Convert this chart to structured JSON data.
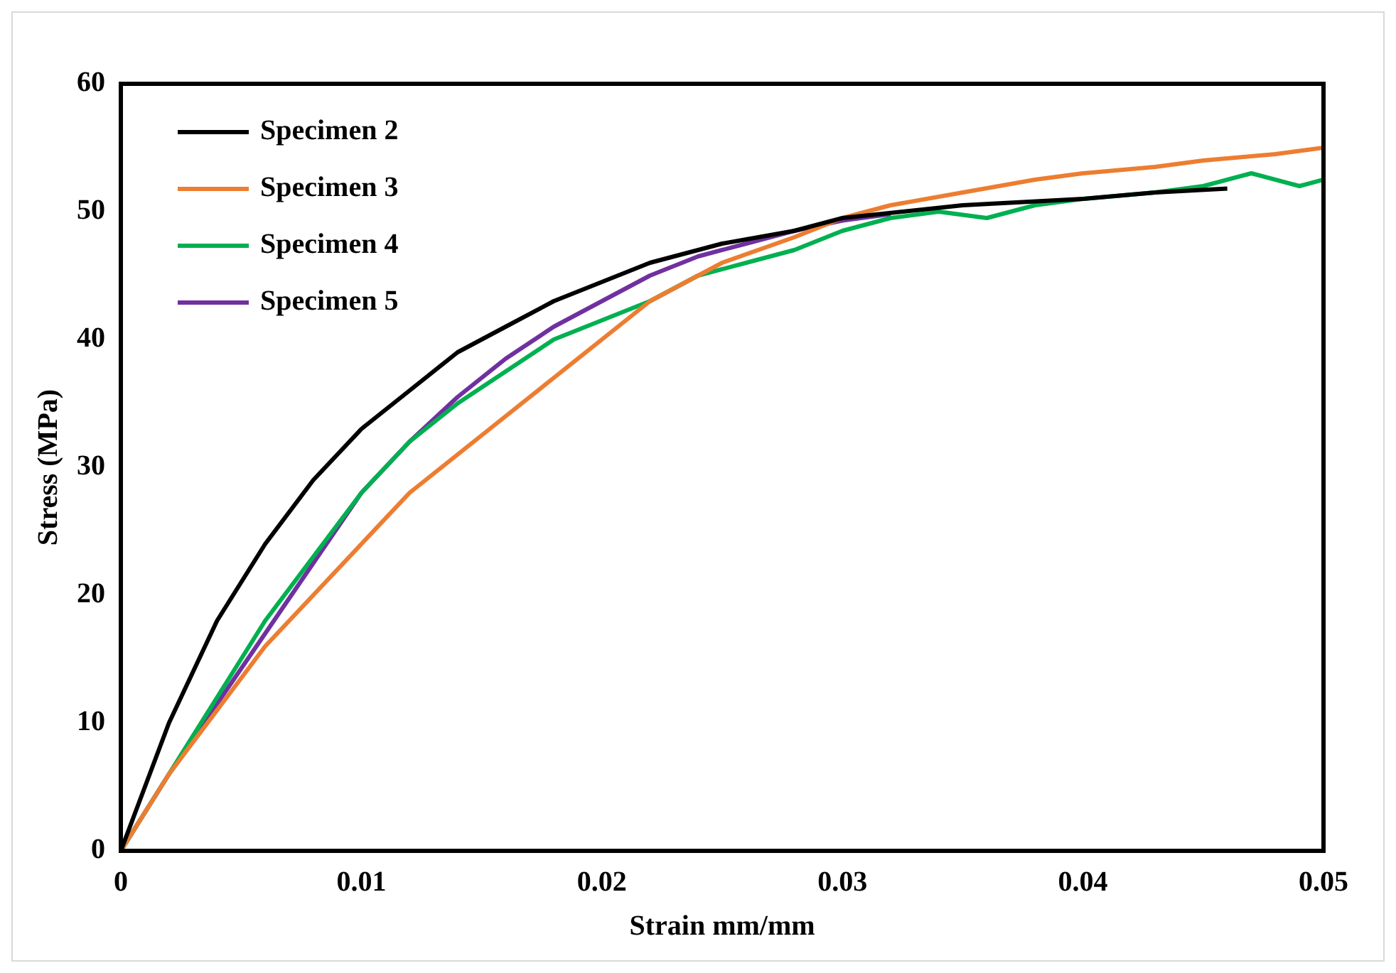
{
  "chart_data": {
    "type": "line",
    "xlabel": "Strain mm/mm",
    "ylabel": "Stress (MPa)",
    "xlim": [
      0,
      0.05
    ],
    "xticks": [
      0,
      0.01,
      0.02,
      0.03,
      0.04,
      0.05
    ],
    "ylim": [
      0,
      60
    ],
    "yticks": [
      0,
      10,
      20,
      30,
      40,
      50,
      60
    ],
    "grid": false,
    "legend": "top left",
    "marker": "none",
    "line_style": "solid",
    "series": [
      {
        "name": "Specimen 2",
        "color": "#000000",
        "x": [
          0,
          0.001,
          0.002,
          0.003,
          0.004,
          0.005,
          0.006,
          0.008,
          0.01,
          0.012,
          0.014,
          0.016,
          0.018,
          0.02,
          0.022,
          0.025,
          0.028,
          0.03,
          0.035,
          0.04,
          0.043,
          0.046
        ],
        "values": [
          0,
          5,
          10,
          14,
          18,
          21,
          24,
          29,
          33,
          36,
          39,
          41,
          43,
          44.5,
          46,
          47.5,
          48.5,
          49.5,
          50.5,
          51,
          51.5,
          51.8
        ]
      },
      {
        "name": "Specimen 3",
        "color": "#ed7d31",
        "x": [
          0,
          0.002,
          0.004,
          0.006,
          0.008,
          0.01,
          0.012,
          0.014,
          0.016,
          0.018,
          0.02,
          0.022,
          0.025,
          0.028,
          0.03,
          0.032,
          0.035,
          0.038,
          0.04,
          0.043,
          0.045,
          0.048,
          0.05
        ],
        "values": [
          0,
          6,
          11,
          16,
          20,
          24,
          28,
          31,
          34,
          37,
          40,
          43,
          46,
          48,
          49.5,
          50.5,
          51.5,
          52.5,
          53,
          53.5,
          54,
          54.5,
          55
        ]
      },
      {
        "name": "Specimen 4",
        "color": "#00b050",
        "x": [
          0,
          0.002,
          0.004,
          0.006,
          0.008,
          0.01,
          0.012,
          0.014,
          0.016,
          0.018,
          0.02,
          0.022,
          0.024,
          0.026,
          0.028,
          0.03,
          0.032,
          0.034,
          0.036,
          0.038,
          0.04,
          0.043,
          0.045,
          0.047,
          0.049,
          0.05
        ],
        "values": [
          0,
          6,
          12,
          18,
          23,
          28,
          32,
          35,
          37.5,
          40,
          41.5,
          43,
          45,
          46,
          47,
          48.5,
          49.5,
          50,
          49.5,
          50.5,
          51,
          51.5,
          52,
          53,
          52,
          52.5
        ]
      },
      {
        "name": "Specimen 5",
        "color": "#7030a0",
        "x": [
          0,
          0.002,
          0.004,
          0.006,
          0.008,
          0.01,
          0.012,
          0.014,
          0.016,
          0.018,
          0.02,
          0.022,
          0.024,
          0.026,
          0.028,
          0.03,
          0.032
        ],
        "values": [
          0,
          6,
          11.5,
          17,
          22.5,
          28,
          32,
          35.5,
          38.5,
          41,
          43,
          45,
          46.5,
          47.5,
          48.5,
          49.3,
          49.8
        ]
      }
    ]
  }
}
